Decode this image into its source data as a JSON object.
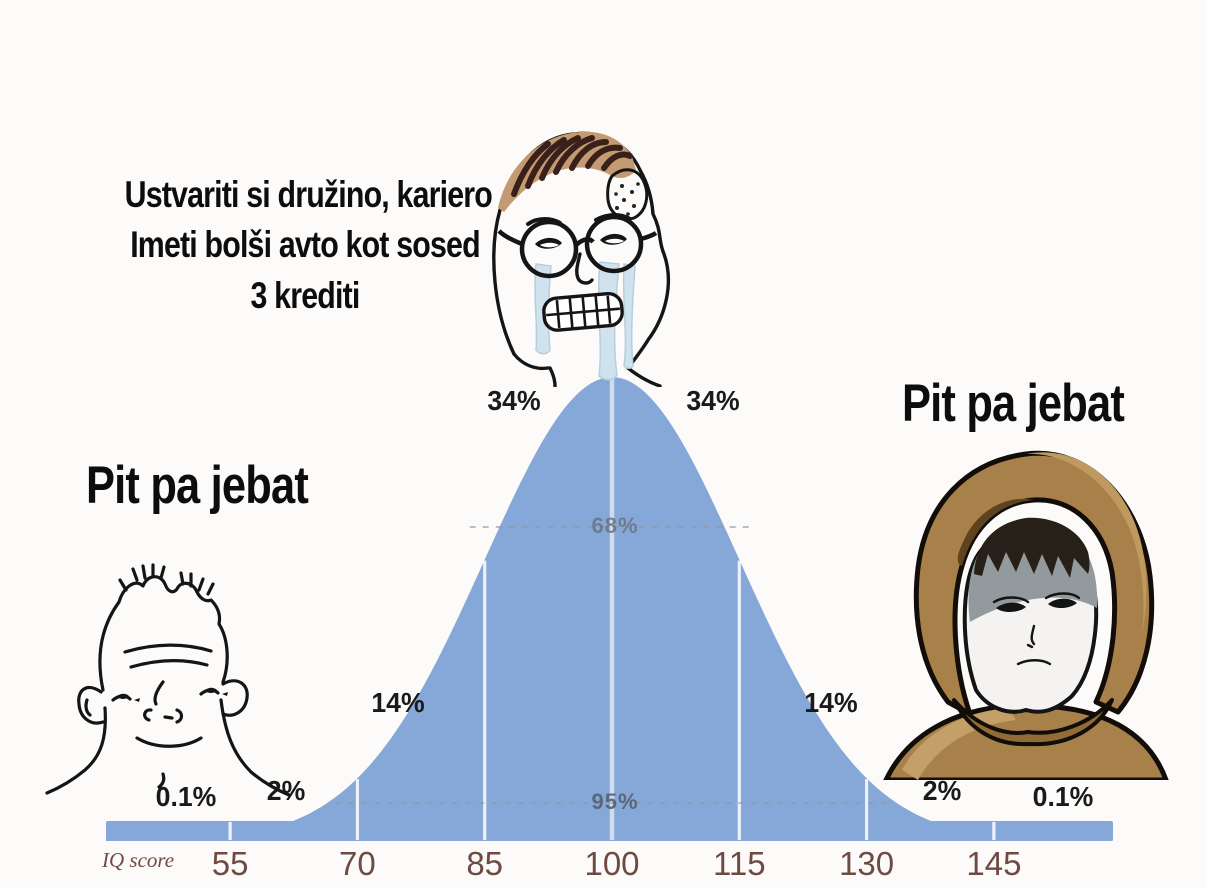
{
  "meme": {
    "caption_top_lines": [
      "Ustvariti si družino, kariero",
      "Imeti bolši avto kot sosed",
      "3 krediti"
    ],
    "caption_left": "Pit pa jebat",
    "caption_right": "Pit pa jebat"
  },
  "figures": [
    {
      "name": "brainlet-wojak",
      "position": "left-tail"
    },
    {
      "name": "crying-wojak-with-glasses",
      "position": "center-peak"
    },
    {
      "name": "hooded-doomer-wojak",
      "position": "right-tail"
    }
  ],
  "chart_data": {
    "type": "area",
    "subtype": "normal-distribution-bell-curve",
    "x_label": "IQ score",
    "x_ticks": [
      55,
      70,
      85,
      100,
      115,
      130,
      145
    ],
    "mean": 100,
    "sd": 15,
    "segments": [
      {
        "range": "<55",
        "label": "0.1%"
      },
      {
        "range": "55-70",
        "label": "2%"
      },
      {
        "range": "70-85",
        "label": "14%"
      },
      {
        "range": "85-100",
        "label": "34%"
      },
      {
        "range": "100-115",
        "label": "34%"
      },
      {
        "range": "115-130",
        "label": "14%"
      },
      {
        "range": "130-145",
        "label": "2%"
      },
      {
        "range": ">145",
        "label": "0.1%"
      }
    ],
    "interval_labels": [
      {
        "label": "68%",
        "from": 85,
        "to": 115
      },
      {
        "label": "95%",
        "from": 70,
        "to": 130
      }
    ],
    "grid": "vertical-white-lines-at-ticks",
    "legend": "none",
    "colors": {
      "curve_fill": "#86a8d8",
      "center_line": "#cfdcee",
      "tick_text": "#6f4a42",
      "segment_text": "#1a1a1a",
      "interval_text": "#6a7482",
      "background": "#fcfbfa"
    }
  }
}
